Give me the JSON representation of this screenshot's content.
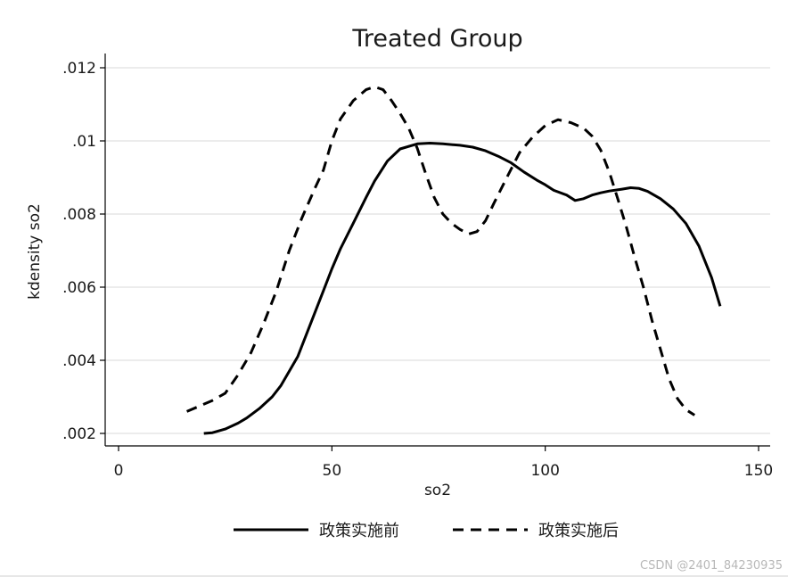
{
  "chart_data": {
    "type": "line",
    "title": "Treated Group",
    "xlabel": "so2",
    "ylabel": "kdensity so2",
    "xlim": [
      0,
      150
    ],
    "ylim": [
      0.0018,
      0.0125
    ],
    "x_ticks": [
      0,
      50,
      100,
      150
    ],
    "x_tick_labels": [
      "0",
      "50",
      "100",
      "150"
    ],
    "y_ticks": [
      0.002,
      0.004,
      0.006,
      0.008,
      0.01,
      0.012
    ],
    "y_tick_labels": [
      ".002",
      ".004",
      ".006",
      ".008",
      ".01",
      ".012"
    ],
    "grid": "horizontal",
    "legend_position": "bottom",
    "colors": {
      "line": "#000000",
      "grid": "#e6e6e6",
      "axis": "#000000",
      "background": "#ffffff",
      "watermark": "#b8b8b8"
    },
    "series": [
      {
        "name": "政策实施前",
        "style": "solid",
        "points": [
          [
            20,
            0.002
          ],
          [
            22,
            0.00202
          ],
          [
            25,
            0.00212
          ],
          [
            28,
            0.00228
          ],
          [
            30,
            0.00242
          ],
          [
            33,
            0.00268
          ],
          [
            36,
            0.003
          ],
          [
            38,
            0.0033
          ],
          [
            40,
            0.0037
          ],
          [
            42,
            0.0041
          ],
          [
            44,
            0.0047
          ],
          [
            46,
            0.0053
          ],
          [
            48,
            0.0059
          ],
          [
            50,
            0.0065
          ],
          [
            52,
            0.00705
          ],
          [
            55,
            0.00775
          ],
          [
            58,
            0.00845
          ],
          [
            60,
            0.0089
          ],
          [
            63,
            0.00945
          ],
          [
            66,
            0.00978
          ],
          [
            70,
            0.00992
          ],
          [
            73,
            0.00994
          ],
          [
            76,
            0.00992
          ],
          [
            80,
            0.00988
          ],
          [
            83,
            0.00983
          ],
          [
            86,
            0.00973
          ],
          [
            89,
            0.00958
          ],
          [
            92,
            0.0094
          ],
          [
            95,
            0.00915
          ],
          [
            98,
            0.00893
          ],
          [
            100,
            0.0088
          ],
          [
            102,
            0.00865
          ],
          [
            105,
            0.00852
          ],
          [
            107,
            0.00837
          ],
          [
            109,
            0.00842
          ],
          [
            111,
            0.00852
          ],
          [
            113,
            0.00858
          ],
          [
            115,
            0.00863
          ],
          [
            118,
            0.00868
          ],
          [
            120,
            0.00872
          ],
          [
            122,
            0.0087
          ],
          [
            124,
            0.00862
          ],
          [
            127,
            0.00842
          ],
          [
            130,
            0.00814
          ],
          [
            133,
            0.00774
          ],
          [
            136,
            0.00713
          ],
          [
            139,
            0.00626
          ],
          [
            141,
            0.00548
          ]
        ]
      },
      {
        "name": "政策实施后",
        "style": "dashed",
        "points": [
          [
            16,
            0.0026
          ],
          [
            19,
            0.00275
          ],
          [
            22,
            0.0029
          ],
          [
            25,
            0.0031
          ],
          [
            28,
            0.0036
          ],
          [
            31,
            0.0042
          ],
          [
            34,
            0.005
          ],
          [
            37,
            0.0059
          ],
          [
            40,
            0.007
          ],
          [
            43,
            0.0079
          ],
          [
            46,
            0.0087
          ],
          [
            48,
            0.0092
          ],
          [
            50,
            0.01
          ],
          [
            52,
            0.0106
          ],
          [
            55,
            0.0111
          ],
          [
            58,
            0.0114
          ],
          [
            60,
            0.01148
          ],
          [
            62,
            0.0114
          ],
          [
            64,
            0.0111
          ],
          [
            66,
            0.01075
          ],
          [
            68,
            0.01035
          ],
          [
            70,
            0.0098
          ],
          [
            72,
            0.0091
          ],
          [
            74,
            0.00845
          ],
          [
            76,
            0.008
          ],
          [
            78,
            0.00775
          ],
          [
            80,
            0.00758
          ],
          [
            82,
            0.00745
          ],
          [
            84,
            0.00752
          ],
          [
            86,
            0.00782
          ],
          [
            88,
            0.0083
          ],
          [
            91,
            0.009
          ],
          [
            94,
            0.00968
          ],
          [
            97,
            0.0101
          ],
          [
            100,
            0.01042
          ],
          [
            103,
            0.01058
          ],
          [
            106,
            0.0105
          ],
          [
            109,
            0.01035
          ],
          [
            111,
            0.01013
          ],
          [
            113,
            0.00975
          ],
          [
            115,
            0.00915
          ],
          [
            117,
            0.00842
          ],
          [
            119,
            0.00765
          ],
          [
            121,
            0.0068
          ],
          [
            123,
            0.006
          ],
          [
            125,
            0.0051
          ],
          [
            127,
            0.0043
          ],
          [
            129,
            0.0035
          ],
          [
            131,
            0.00295
          ],
          [
            133,
            0.00265
          ],
          [
            135,
            0.0025
          ]
        ]
      }
    ]
  },
  "watermark": "CSDN @2401_84230935"
}
